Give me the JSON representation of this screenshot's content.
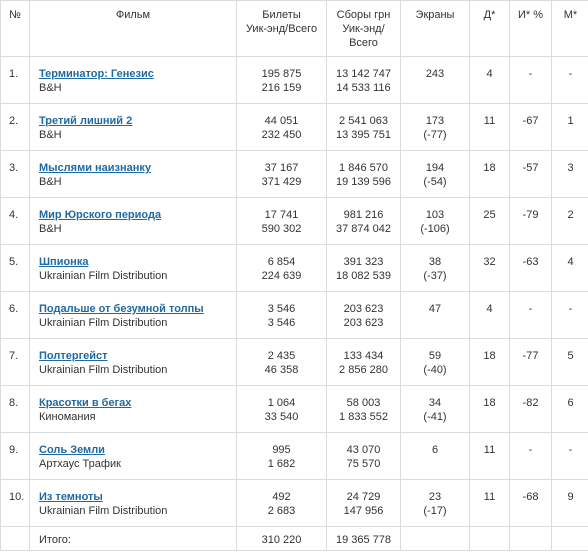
{
  "headers": {
    "num": "№",
    "film": "Фильм",
    "tickets_l1": "Билеты",
    "tickets_l2": "Уик-энд/Всего",
    "gross_l1": "Сборы грн",
    "gross_l2": "Уик-энд/",
    "gross_l3": "Всего",
    "screens": "Экраны",
    "d": "Д*",
    "i": "И* %",
    "m": "М*"
  },
  "rows": [
    {
      "num": "1.",
      "title": "Терминатор: Генезис",
      "dist": "B&H",
      "tw": "195 875",
      "tt": "216 159",
      "gw": "13 142 747",
      "gt": "14 533 116",
      "screens": "243",
      "sdiff": "",
      "d": "4",
      "i": "-",
      "m": "-"
    },
    {
      "num": "2.",
      "title": "Третий лишний 2",
      "dist": "B&H",
      "tw": "44 051",
      "tt": "232 450",
      "gw": "2 541 063",
      "gt": "13 395 751",
      "screens": "173",
      "sdiff": "(-77)",
      "d": "11",
      "i": "-67",
      "m": "1"
    },
    {
      "num": "3.",
      "title": "Мыслями наизнанку",
      "dist": "B&H",
      "tw": "37 167",
      "tt": "371 429",
      "gw": "1 846 570",
      "gt": "19 139 596",
      "screens": "194",
      "sdiff": "(-54)",
      "d": "18",
      "i": "-57",
      "m": "3"
    },
    {
      "num": "4.",
      "title": "Мир Юрского периода",
      "dist": "B&H",
      "tw": "17 741",
      "tt": "590 302",
      "gw": "981 216",
      "gt": "37 874 042",
      "screens": "103",
      "sdiff": "(-106)",
      "d": "25",
      "i": "-79",
      "m": "2"
    },
    {
      "num": "5.",
      "title": "Шпионка",
      "dist": "Ukrainian Film Distribution",
      "tw": "6 854",
      "tt": "224 639",
      "gw": "391 323",
      "gt": "18 082 539",
      "screens": "38",
      "sdiff": "(-37)",
      "d": "32",
      "i": "-63",
      "m": "4"
    },
    {
      "num": "6.",
      "title": "Подальше от безумной толпы",
      "dist": "Ukrainian Film Distribution",
      "tw": "3 546",
      "tt": "3 546",
      "gw": "203 623",
      "gt": "203 623",
      "screens": "47",
      "sdiff": "",
      "d": "4",
      "i": "-",
      "m": "-"
    },
    {
      "num": "7.",
      "title": "Полтергейст",
      "dist": "Ukrainian Film Distribution",
      "tw": "2 435",
      "tt": "46 358",
      "gw": "133 434",
      "gt": "2 856 280",
      "screens": "59",
      "sdiff": "(-40)",
      "d": "18",
      "i": "-77",
      "m": "5"
    },
    {
      "num": "8.",
      "title": "Красотки в бегах",
      "dist": "Киномания",
      "tw": "1 064",
      "tt": "33 540",
      "gw": "58 003",
      "gt": "1 833 552",
      "screens": "34",
      "sdiff": "(-41)",
      "d": "18",
      "i": "-82",
      "m": "6"
    },
    {
      "num": "9.",
      "title": "Соль Земли",
      "dist": "Артхаус Трафик",
      "tw": "995",
      "tt": "1 682",
      "gw": "43 070",
      "gt": "75 570",
      "screens": "6",
      "sdiff": "",
      "d": "11",
      "i": "-",
      "m": "-"
    },
    {
      "num": "10.",
      "title": "Из темноты",
      "dist": "Ukrainian Film Distribution",
      "tw": "492",
      "tt": "2 683",
      "gw": "24 729",
      "gt": "147 956",
      "screens": "23",
      "sdiff": "(-17)",
      "d": "11",
      "i": "-68",
      "m": "9"
    }
  ],
  "total": {
    "label": "Итого:",
    "tickets": "310 220",
    "gross": "19 365 778"
  },
  "colors": {
    "link": "#1f6aa5",
    "border": "#dcdcdc",
    "text": "#333333"
  }
}
